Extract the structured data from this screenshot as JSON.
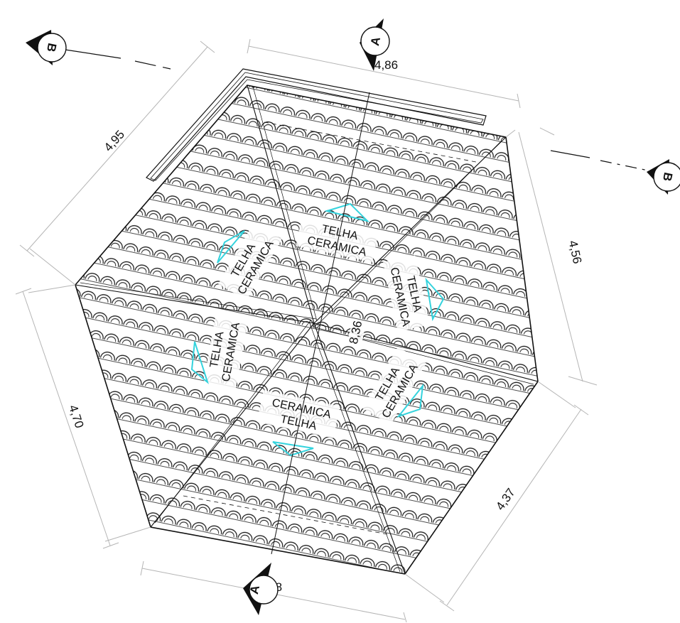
{
  "dimensions": {
    "top": "4,86",
    "upper_left": "4,95",
    "upper_right": "4,56",
    "lower_left": "4,70",
    "lower_right": "4,37",
    "bottom": "4,78",
    "center": "8,36"
  },
  "roof_labels": {
    "line1": "TELHA",
    "line2": "CERAMICA"
  },
  "section_markers": {
    "a": "A",
    "b": "B"
  },
  "colors": {
    "ink": "#111111",
    "dimension_line": "#b5b5b5",
    "slope_arrow": "#35d3dd"
  }
}
